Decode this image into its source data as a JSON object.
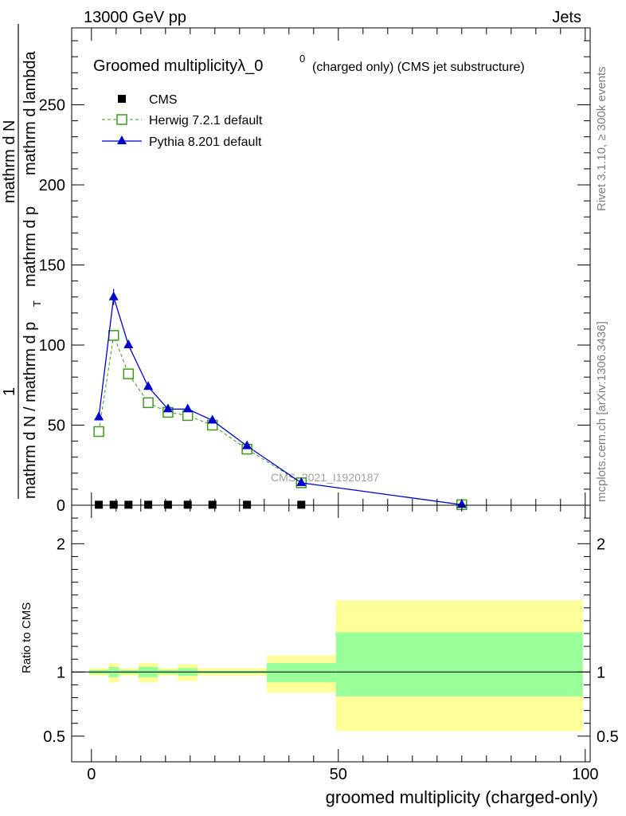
{
  "header": {
    "left": "13000 GeV pp",
    "right": "Jets"
  },
  "side_labels": {
    "rivet": "Rivet 3.1.10, ≥ 300k events",
    "mcplots": "mcplots.cern.ch [arXiv:1306.3436]"
  },
  "chart_data": [
    {
      "type": "line",
      "title": "Groomed multiplicityλ_0",
      "title_sup": "0",
      "title_suffix": "(charged only) (CMS jet substructure)",
      "ylabel_numerator": "1",
      "ylabel_lines": [
        "mathrm d N / mathrm d p",
        "T",
        "mathrm d N",
        "mathrm d p",
        "mathrm d lambda",
        "mathrm d",
        "N"
      ],
      "watermark": "CMS_2021_I1920187",
      "xlim": [
        -4,
        101
      ],
      "ylim": [
        0,
        298
      ],
      "yticks": [
        0,
        50,
        100,
        150,
        200,
        250
      ],
      "legend_position": "top-left",
      "series": [
        {
          "name": "CMS",
          "color": "#000000",
          "marker": "square-filled",
          "x": [
            1.5,
            4.5,
            7.5,
            11.5,
            15.5,
            19.5,
            24.5,
            31.5,
            42.5
          ],
          "y": [
            0.3,
            0.3,
            0.3,
            0.3,
            0.3,
            0.3,
            0.3,
            0.3,
            0.3
          ]
        },
        {
          "name": "Herwig 7.2.1 default",
          "color": "#3e9a1a",
          "marker": "square-open",
          "dashed": true,
          "x": [
            1.5,
            4.5,
            7.5,
            11.5,
            15.5,
            19.5,
            24.5,
            31.5,
            42.5,
            75
          ],
          "y": [
            46,
            106,
            82,
            64,
            58,
            56,
            50,
            35,
            14,
            0.3
          ]
        },
        {
          "name": "Pythia 8.201 default",
          "color": "#0000cc",
          "marker": "triangle-filled",
          "x": [
            1.5,
            4.5,
            7.5,
            11.5,
            15.5,
            19.5,
            24.5,
            31.5,
            42.5,
            75
          ],
          "y": [
            55,
            130,
            100,
            74,
            60,
            60,
            53,
            37,
            14,
            0.3
          ],
          "yerr": [
            0,
            5,
            2,
            1.5,
            1,
            1.5,
            1,
            1,
            0.5,
            0
          ]
        }
      ]
    },
    {
      "type": "area",
      "ylabel": "Ratio to CMS",
      "xlabel": "groomed multiplicity (charged-only)",
      "xlim": [
        -4,
        101
      ],
      "ylim": [
        0.3,
        2.3
      ],
      "yticks": [
        0.5,
        1,
        2
      ],
      "ytick_labels": [
        "0.5",
        "1",
        "2"
      ],
      "xticks": [
        0,
        50,
        100
      ],
      "reference_line": 1,
      "bands": [
        {
          "x0": -0.5,
          "x1": 3.5,
          "yellow": [
            0.97,
            1.03
          ],
          "green": [
            0.985,
            1.015
          ]
        },
        {
          "x0": 3.5,
          "x1": 5.5,
          "yellow": [
            0.92,
            1.07
          ],
          "green": [
            0.96,
            1.04
          ]
        },
        {
          "x0": 5.5,
          "x1": 9.5,
          "yellow": [
            0.97,
            1.03
          ],
          "green": [
            0.985,
            1.015
          ]
        },
        {
          "x0": 9.5,
          "x1": 13.5,
          "yellow": [
            0.92,
            1.07
          ],
          "green": [
            0.96,
            1.04
          ]
        },
        {
          "x0": 13.5,
          "x1": 17.5,
          "yellow": [
            0.97,
            1.03
          ],
          "green": [
            0.985,
            1.015
          ]
        },
        {
          "x0": 17.5,
          "x1": 21.5,
          "yellow": [
            0.93,
            1.06
          ],
          "green": [
            0.97,
            1.03
          ]
        },
        {
          "x0": 21.5,
          "x1": 35.5,
          "yellow": [
            0.97,
            1.03
          ],
          "green": [
            0.99,
            1.01
          ]
        },
        {
          "x0": 35.5,
          "x1": 49.5,
          "yellow": [
            0.84,
            1.13
          ],
          "green": [
            0.92,
            1.07
          ]
        },
        {
          "x0": 49.5,
          "x1": 99.5,
          "yellow": [
            0.54,
            1.56
          ],
          "green": [
            0.81,
            1.31
          ]
        }
      ]
    }
  ]
}
